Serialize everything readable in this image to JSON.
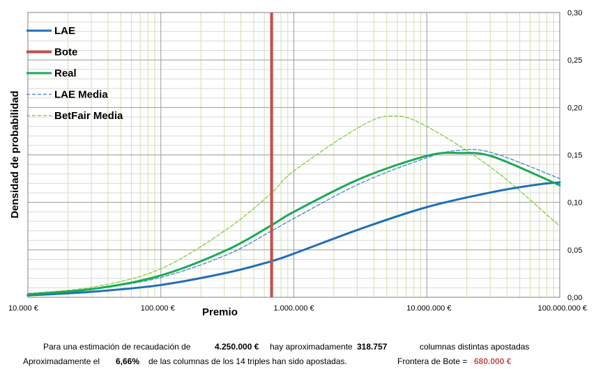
{
  "chart_data": {
    "type": "line",
    "x_scale": "log",
    "xlim": [
      10000,
      100000000
    ],
    "ylim": [
      0,
      0.3
    ],
    "xlabel": "Premio",
    "ylabel": "Densidad de probabilidad",
    "x_ticks": [
      {
        "value": 10000,
        "label": "10.000 €"
      },
      {
        "value": 100000,
        "label": "100.000 €"
      },
      {
        "value": 1000000,
        "label": "1.000.000 €"
      },
      {
        "value": 10000000,
        "label": "10.000.000 €"
      },
      {
        "value": 100000000,
        "label": "100.000.000 €"
      }
    ],
    "y_ticks": [
      {
        "value": 0.0,
        "label": "0,00"
      },
      {
        "value": 0.05,
        "label": "0,05"
      },
      {
        "value": 0.1,
        "label": "0,10"
      },
      {
        "value": 0.15,
        "label": "0,15"
      },
      {
        "value": 0.2,
        "label": "0,20"
      },
      {
        "value": 0.25,
        "label": "0,25"
      },
      {
        "value": 0.3,
        "label": "0,30"
      }
    ],
    "grid": true,
    "legend_position": "top-left",
    "bote_value": 680000,
    "series": [
      {
        "name": "LAE",
        "color": "#1f6fb8",
        "style": "solid",
        "width": 3,
        "x": [
          10000,
          31620,
          100000,
          316200,
          680000,
          1000000,
          3162000,
          10000000,
          31620000,
          70000000,
          100000000
        ],
        "y": [
          0.002,
          0.006,
          0.013,
          0.026,
          0.038,
          0.046,
          0.072,
          0.095,
          0.111,
          0.119,
          0.121
        ]
      },
      {
        "name": "Bote",
        "color": "#c0504d",
        "style": "vertical",
        "width": 4,
        "x_value": 680000
      },
      {
        "name": "Real",
        "color": "#1aaa55",
        "style": "solid",
        "width": 3,
        "x": [
          10000,
          31620,
          100000,
          316200,
          680000,
          1000000,
          3162000,
          10000000,
          17780000,
          31620000,
          100000000
        ],
        "y": [
          0.003,
          0.009,
          0.023,
          0.05,
          0.076,
          0.09,
          0.125,
          0.149,
          0.152,
          0.148,
          0.118
        ]
      },
      {
        "name": "LAE Media",
        "color": "#5b8fd6",
        "style": "dashed",
        "width": 1.5,
        "x": [
          10000,
          31620,
          100000,
          316200,
          680000,
          1000000,
          3162000,
          10000000,
          17780000,
          31620000,
          100000000
        ],
        "y": [
          0.003,
          0.009,
          0.021,
          0.045,
          0.07,
          0.083,
          0.12,
          0.147,
          0.155,
          0.152,
          0.125
        ]
      },
      {
        "name": "BetFair Media",
        "color": "#8fd14f",
        "style": "dashed",
        "width": 1.5,
        "x": [
          10000,
          31620,
          100000,
          316200,
          680000,
          1000000,
          3162000,
          5623000,
          10000000,
          31620000,
          100000000
        ],
        "y": [
          0.004,
          0.011,
          0.03,
          0.072,
          0.11,
          0.133,
          0.18,
          0.191,
          0.18,
          0.135,
          0.075
        ]
      }
    ]
  },
  "footer": {
    "line1_prefix": "Para  una estimación de recaudación de",
    "recaudacion": "4.250.000 €",
    "line1_mid": "hay aproximadamente",
    "columnas": "318.757",
    "line1_suffix": "columnas distintas apostadas",
    "line2_prefix": "Aproximadamente el",
    "porcentaje": "6,66%",
    "line2_mid": "de las columnas de los 14 triples han sido apostadas.",
    "frontera_label": "Frontera de Bote =",
    "frontera_value": "680.000 €"
  }
}
